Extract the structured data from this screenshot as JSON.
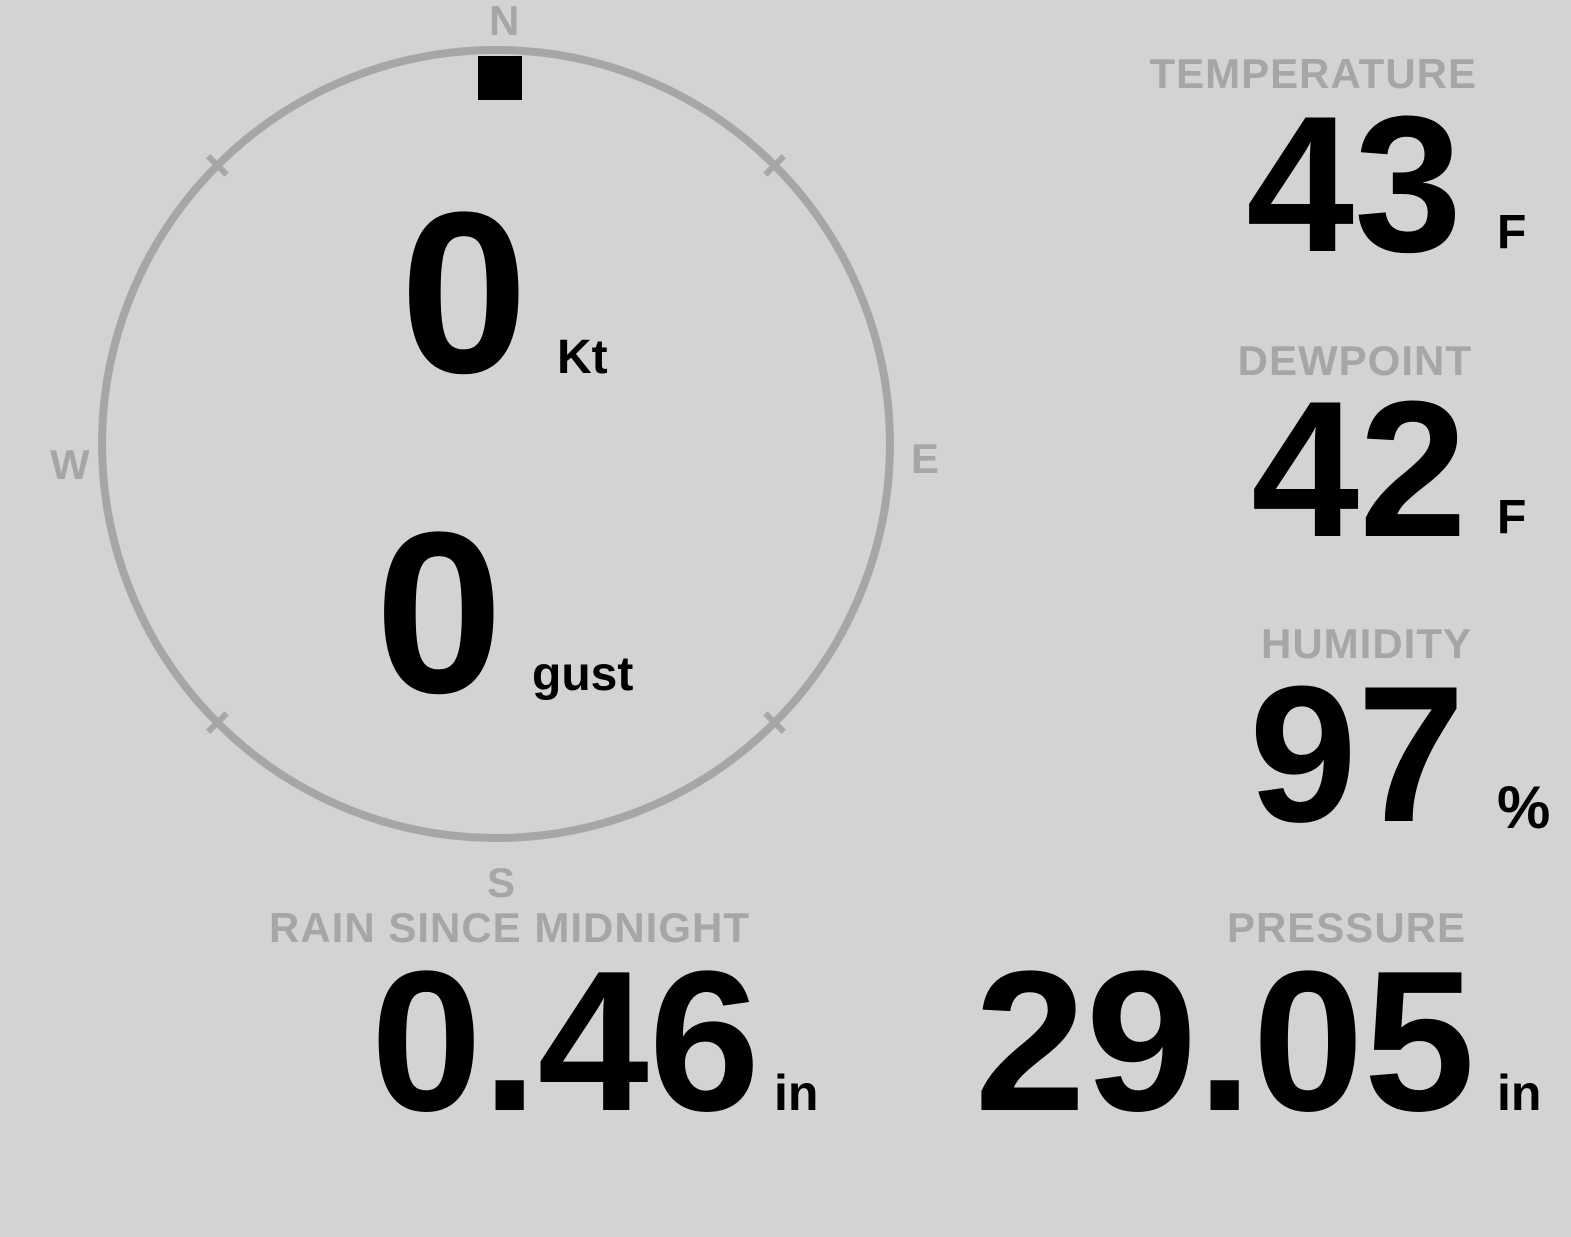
{
  "colors": {
    "background": "#d3d3d3",
    "muted": "#a6a6a6",
    "ink": "#000000"
  },
  "wind": {
    "speed_value": "0",
    "speed_unit": "Kt",
    "gust_value": "0",
    "gust_unit": "gust",
    "direction_deg": 0,
    "compass_labels": {
      "north": "N",
      "east": "E",
      "south": "S",
      "west": "W"
    }
  },
  "readings": {
    "temperature": {
      "label": "TEMPERATURE",
      "value": "43",
      "unit": "F"
    },
    "dewpoint": {
      "label": "DEWPOINT",
      "value": "42",
      "unit": "F"
    },
    "humidity": {
      "label": "HUMIDITY",
      "value": "97",
      "unit": "%"
    },
    "rain_since_midnight": {
      "label": "RAIN SINCE MIDNIGHT",
      "value": "0.46",
      "unit": "in"
    },
    "pressure": {
      "label": "PRESSURE",
      "value": "29.05",
      "unit": "in"
    }
  }
}
